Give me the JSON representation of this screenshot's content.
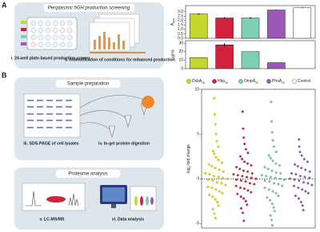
{
  "panel_labels": [
    "A",
    "B"
  ],
  "screening": {
    "title": "Periplasmic hGH production screening",
    "steps": [
      "i. 24-well plate-based production screen",
      "ii. Indentification of conditions for enhanced production"
    ]
  },
  "sample_prep": {
    "title": "Sample preparation",
    "steps": [
      "iii. SDS-PAGE of cell lysates",
      "iv. In-gel protein digestion"
    ]
  },
  "proteome": {
    "title": "Proteome analysis",
    "steps": [
      "v. LC-MS/MS",
      "vi. Data analysis"
    ]
  },
  "chart_data": [
    {
      "type": "bar",
      "ylabel": {
        "text": "A",
        "sub": "600"
      },
      "ylim": [
        0,
        3.7
      ],
      "yticks": [
        {
          "value": 0,
          "label": "0.0"
        },
        {
          "value": 0.5,
          "label": "0.5"
        },
        {
          "value": 1,
          "label": "1.0"
        },
        {
          "value": 1.5,
          "label": "1.5"
        },
        {
          "value": 2,
          "label": "2.0"
        },
        {
          "value": 2.5,
          "label": "2.5"
        },
        {
          "value": 3,
          "label": "3.0"
        }
      ],
      "series": [
        {
          "name": "DsbA",
          "sub": "sp",
          "color": "#c5d72c",
          "values": [
            2.75
          ],
          "errors": [
            0.08
          ]
        },
        {
          "name": "Hbp",
          "sub": "sp",
          "color": "#d2213b",
          "values": [
            2.3
          ],
          "errors": [
            0.08
          ]
        },
        {
          "name": "OmpA",
          "sub": "sp",
          "color": "#7dd0b6",
          "values": [
            2.3
          ],
          "errors": [
            0.1
          ]
        },
        {
          "name": "PhoA",
          "sub": "sp",
          "color": "#9a56b8",
          "values": [
            3.2
          ],
          "errors": [
            0.05
          ]
        },
        {
          "name": "Control",
          "color": "#ffffff",
          "values": [
            3.45
          ],
          "errors": [
            0.05
          ]
        }
      ]
    },
    {
      "type": "bar",
      "ylabel": "ug/ml",
      "ylim": [
        0,
        33
      ],
      "yticks": [
        0,
        10,
        20,
        30
      ],
      "values": [
        13,
        28,
        20,
        7,
        null
      ],
      "errors": [
        0,
        2,
        0,
        0,
        null
      ],
      "colors": [
        "#c5d72c",
        "#d2213b",
        "#7dd0b6",
        "#9a56b8",
        "#ffffff"
      ]
    },
    {
      "type": "strip",
      "ylabel": {
        "text": "log",
        "sub": "2",
        "rest": "-fold change"
      },
      "ylim": [
        -5.5,
        10
      ],
      "yticks": [
        -5,
        0,
        5,
        10
      ],
      "zero_line": true,
      "series": [
        {
          "color": "#e8e000",
          "values": [
            9,
            7.2,
            6.1,
            5,
            4.2,
            3.6,
            3.1,
            2.8,
            2.4,
            2.1,
            1.8,
            1.6,
            1.4,
            1.2,
            1,
            0.8,
            0.6,
            0.5,
            0.3,
            0.2,
            0.1,
            0,
            -0.1,
            -0.2,
            -0.4,
            -0.5,
            -0.7,
            -0.9,
            -1,
            -1.2,
            -1.4,
            -1.6,
            -1.8,
            -2,
            -2.3,
            -2.6,
            -3,
            -3.4,
            -3.9,
            -4.4
          ]
        },
        {
          "color": "#d2213b",
          "values": [
            7.5,
            5.6,
            4.6,
            3.9,
            3.3,
            2.9,
            2.5,
            2.2,
            1.9,
            1.7,
            1.5,
            1.3,
            1.1,
            0.9,
            0.8,
            0.6,
            0.5,
            0.4,
            0.3,
            0.2,
            0.1,
            0,
            -0.1,
            -0.2,
            -0.3,
            -0.5,
            -0.6,
            -0.8,
            -1,
            -1.1,
            -1.3,
            -1.5,
            -1.7,
            -2,
            -2.2,
            -2.5,
            -2.9,
            -3.3,
            -3.8,
            -4.7
          ]
        },
        {
          "color": "#7dd0b6",
          "values": [
            8.6,
            6.4,
            5.2,
            4.3,
            3.6,
            3,
            2.6,
            2.3,
            2,
            1.7,
            1.5,
            1.3,
            1.1,
            0.9,
            0.7,
            0.6,
            0.4,
            0.3,
            0.2,
            0.1,
            0,
            -0.1,
            -0.2,
            -0.3,
            -0.5,
            -0.6,
            -0.8,
            -1,
            -1.2,
            -1.4,
            -1.6,
            -1.9,
            -2.1,
            -2.4,
            -2.8,
            -3.2,
            -3.6,
            -4.1,
            -4.6,
            -5.2
          ]
        },
        {
          "color": "#9a56b8",
          "values": [
            4.4,
            3.6,
            3,
            2.6,
            2.2,
            1.9,
            1.6,
            1.4,
            1.2,
            1,
            0.8,
            0.6,
            0.5,
            0.3,
            0.2,
            0.1,
            0,
            -0.1,
            -0.2,
            -0.4,
            -0.5,
            -0.7,
            -0.8,
            -1,
            -1.2,
            -1.4,
            -1.6,
            -1.9,
            -2.2,
            -2.6,
            -3,
            -3.5
          ]
        }
      ]
    }
  ]
}
